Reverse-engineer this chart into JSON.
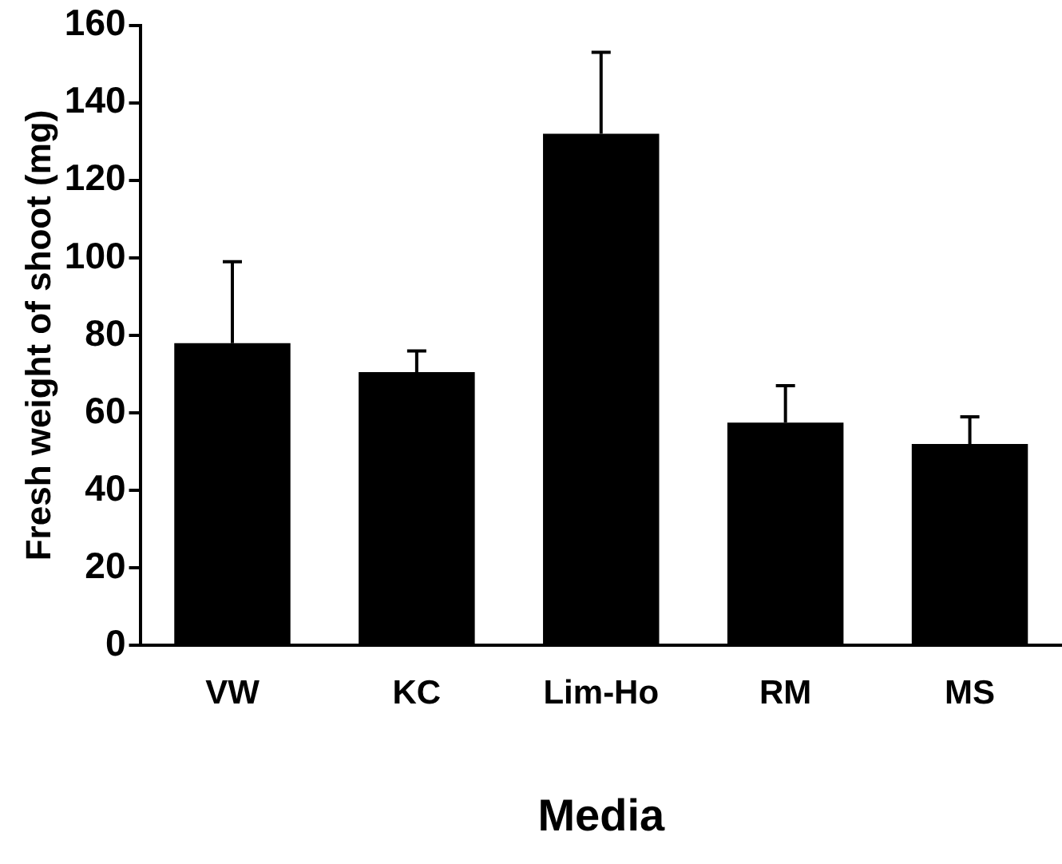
{
  "chart_data": {
    "type": "bar",
    "xlabel": "Media",
    "ylabel": "Fresh weight of shoot (mg)",
    "categories": [
      "VW",
      "KC",
      "Lim-Ho",
      "RM",
      "MS"
    ],
    "values": [
      78,
      70.5,
      132,
      57.5,
      52
    ],
    "errors": [
      [
        78,
        99
      ],
      [
        70.5,
        76
      ],
      [
        132,
        153
      ],
      [
        57.5,
        67
      ],
      [
        52,
        59
      ]
    ],
    "color": "#000000",
    "ylim": [
      0,
      160
    ],
    "yticks": [
      0,
      20,
      40,
      60,
      80,
      100,
      120,
      140,
      160
    ],
    "grid": false
  }
}
